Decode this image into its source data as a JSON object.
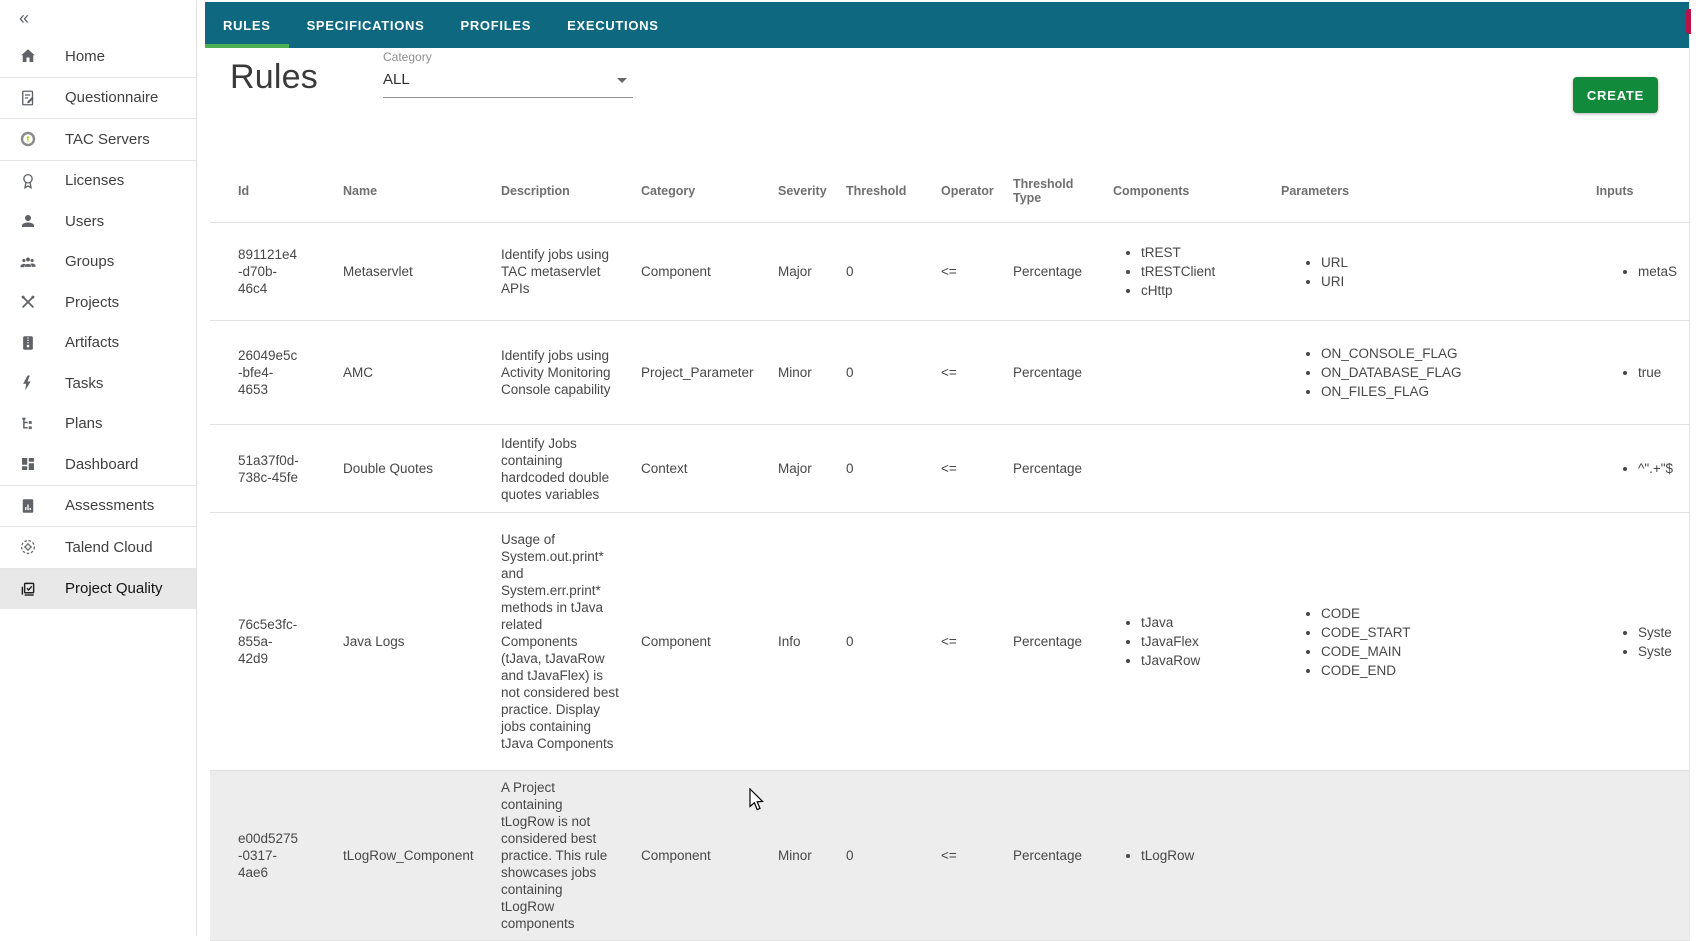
{
  "sidebar": {
    "collapse_icon": "«",
    "items": [
      {
        "label": "Home",
        "icon": "home"
      },
      {
        "label": "Questionnaire",
        "icon": "questionnaire"
      },
      {
        "label": "TAC Servers",
        "icon": "tac-servers"
      },
      {
        "label": "Licenses",
        "icon": "licenses"
      },
      {
        "label": "Users",
        "icon": "user"
      },
      {
        "label": "Groups",
        "icon": "groups"
      },
      {
        "label": "Projects",
        "icon": "crossed-tools"
      },
      {
        "label": "Artifacts",
        "icon": "archive"
      },
      {
        "label": "Tasks",
        "icon": "lightning"
      },
      {
        "label": "Plans",
        "icon": "plan-tree"
      },
      {
        "label": "Dashboard",
        "icon": "dashboard-grid"
      },
      {
        "label": "Assessments",
        "icon": "bar-chart-file"
      },
      {
        "label": "Talend Cloud",
        "icon": "cloud-target"
      },
      {
        "label": "Project Quality",
        "icon": "checklist",
        "selected": true
      }
    ]
  },
  "tabs": [
    {
      "label": "RULES",
      "active": true
    },
    {
      "label": "SPECIFICATIONS",
      "active": false
    },
    {
      "label": "PROFILES",
      "active": false
    },
    {
      "label": "EXECUTIONS",
      "active": false
    }
  ],
  "page": {
    "title": "Rules",
    "category_filter": {
      "label": "Category",
      "value": "ALL"
    },
    "create_button": "CREATE"
  },
  "table": {
    "columns": [
      "Id",
      "Name",
      "Description",
      "Category",
      "Severity",
      "Threshold",
      "Operator",
      "Threshold Type",
      "Components",
      "Parameters",
      "Inputs"
    ],
    "rows": [
      {
        "id": "891121e4-d70b-46c4",
        "name": "Metaservlet",
        "description": "Identify jobs using TAC metaservlet APIs",
        "category": "Component",
        "severity": "Major",
        "threshold": "0",
        "operator": "<=",
        "threshold_type": "Percentage",
        "components": [
          "tREST",
          "tRESTClient",
          "cHttp"
        ],
        "parameters": [
          "URL",
          "URI"
        ],
        "inputs": [
          "metaS"
        ]
      },
      {
        "id": "26049e5c-bfe4-4653",
        "name": "AMC",
        "description": "Identify jobs using Activity Monitoring Console capability",
        "category": "Project_Parameter",
        "severity": "Minor",
        "threshold": "0",
        "operator": "<=",
        "threshold_type": "Percentage",
        "components": [],
        "parameters": [
          "ON_CONSOLE_FLAG",
          "ON_DATABASE_FLAG",
          "ON_FILES_FLAG"
        ],
        "inputs": [
          "true"
        ]
      },
      {
        "id": "51a37f0d-738c-45fe",
        "name": "Double Quotes",
        "description": "Identify Jobs containing hardcoded double quotes variables",
        "category": "Context",
        "severity": "Major",
        "threshold": "0",
        "operator": "<=",
        "threshold_type": "Percentage",
        "components": [],
        "parameters": [],
        "inputs": [
          "^\".+\"$"
        ]
      },
      {
        "id": "76c5e3fc-855a-42d9",
        "name": "Java Logs",
        "description": "Usage of System.out.print* and System.err.print* methods in tJava related Components (tJava, tJavaRow and tJavaFlex) is not considered best practice. Display jobs containing tJava Components",
        "category": "Component",
        "severity": "Info",
        "threshold": "0",
        "operator": "<=",
        "threshold_type": "Percentage",
        "components": [
          "tJava",
          "tJavaFlex",
          "tJavaRow"
        ],
        "parameters": [
          "CODE",
          "CODE_START",
          "CODE_MAIN",
          "CODE_END"
        ],
        "inputs": [
          "Syste",
          "Syste"
        ]
      },
      {
        "id": "e00d5275-0317-4ae6",
        "name": "tLogRow_Component",
        "description": "A Project containing tLogRow is not considered best practice. This rule showcases jobs containing tLogRow components",
        "category": "Component",
        "severity": "Minor",
        "threshold": "0",
        "operator": "<=",
        "threshold_type": "Percentage",
        "components": [
          "tLogRow"
        ],
        "parameters": [],
        "inputs": []
      }
    ]
  },
  "colors": {
    "header_teal": "#0d6880",
    "active_tab_underline": "#4caf50",
    "create_button_green": "#118a3c",
    "selected_sidebar_gray": "#e8e8e8",
    "highlighted_row_gray": "#ededed",
    "talend_lime": "#a8c815"
  }
}
